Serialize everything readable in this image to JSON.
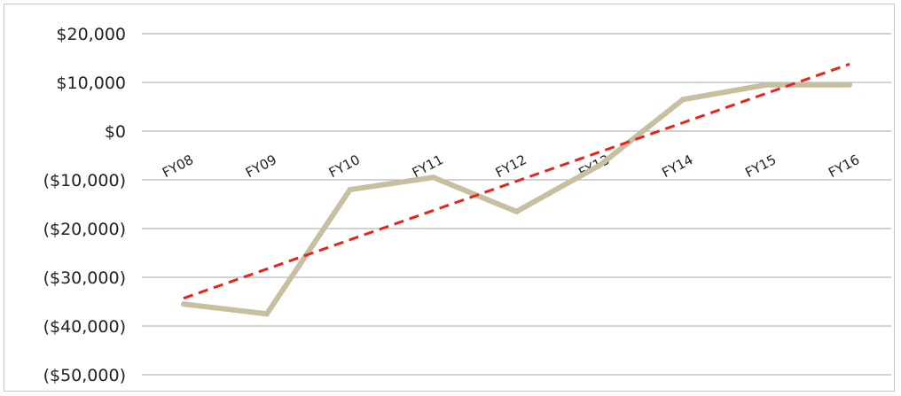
{
  "chart_data": {
    "type": "line",
    "categories": [
      "FY08",
      "FY09",
      "FY10",
      "FY11",
      "FY12",
      "FY13",
      "FY14",
      "FY15",
      "FY16"
    ],
    "series": [
      {
        "values": [
          -35500,
          -37500,
          -12000,
          -9500,
          -16500,
          -7000,
          6500,
          9500,
          9500
        ],
        "color": "#c8bea0"
      }
    ],
    "trendline": {
      "type": "linear",
      "style": "dashed",
      "color": "#e8231e"
    },
    "ylim": [
      -50000,
      20000
    ],
    "ytick_step": 10000,
    "ytick_labels": [
      "$20,000",
      "$10,000",
      "$0",
      "($10,000)",
      "($20,000)",
      "($30,000)",
      "($40,000)",
      "($50,000)"
    ],
    "grid": true,
    "title": "",
    "xlabel": "",
    "ylabel": ""
  }
}
